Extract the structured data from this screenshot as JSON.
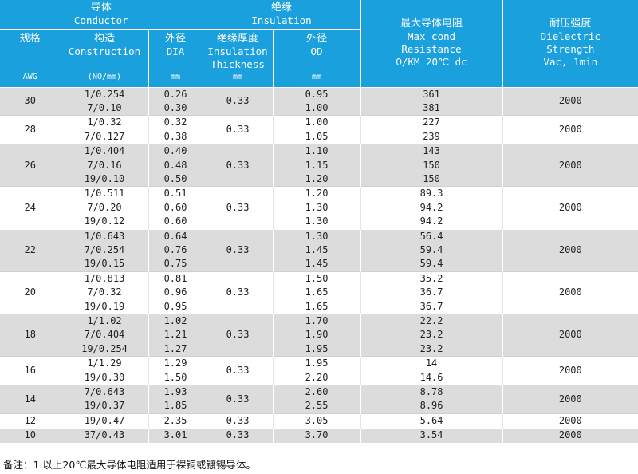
{
  "header": {
    "conductor_cn": "导体",
    "conductor_en": "Conductor",
    "insulation_cn": "绝缘",
    "insulation_en": "Insulation",
    "resistance_cn": "最大导体电阻",
    "resistance_en1": "Max cond",
    "resistance_en2": "Resistance",
    "resistance_unit": "Ω/KM 20℃ dc",
    "dielectric_cn": "耐压强度",
    "dielectric_en1": "Dielectric",
    "dielectric_en2": "Strength",
    "dielectric_unit": "Vac, 1min",
    "gauge_cn": "规格",
    "gauge_unit": "AWG",
    "construction_cn": "构造",
    "construction_en": "Construction",
    "construction_unit": "(NO/mm)",
    "dia_cn": "外径",
    "dia_en": "DIA",
    "dia_unit": "mm",
    "ins_thick_cn": "绝缘厚度",
    "ins_thick_en1": "Insulation",
    "ins_thick_en2": "Thickness",
    "ins_thick_unit": "mm",
    "od_cn": "外径",
    "od_en": "OD",
    "od_unit": "mm"
  },
  "groups": [
    {
      "awg": "30",
      "thickness": "0.33",
      "voltage": "2000",
      "rows": [
        {
          "construction": "1/0.254",
          "dia": "0.26",
          "od": "0.95",
          "resistance": "361"
        },
        {
          "construction": "7/0.10",
          "dia": "0.30",
          "od": "1.00",
          "resistance": "381"
        }
      ]
    },
    {
      "awg": "28",
      "thickness": "0.33",
      "voltage": "2000",
      "rows": [
        {
          "construction": "1/0.32",
          "dia": "0.32",
          "od": "1.00",
          "resistance": "227"
        },
        {
          "construction": "7/0.127",
          "dia": "0.38",
          "od": "1.05",
          "resistance": "239"
        }
      ]
    },
    {
      "awg": "26",
      "thickness": "0.33",
      "voltage": "2000",
      "rows": [
        {
          "construction": "1/0.404",
          "dia": "0.40",
          "od": "1.10",
          "resistance": "143"
        },
        {
          "construction": "7/0.16",
          "dia": "0.48",
          "od": "1.15",
          "resistance": "150"
        },
        {
          "construction": "19/0.10",
          "dia": "0.50",
          "od": "1.20",
          "resistance": "150"
        }
      ]
    },
    {
      "awg": "24",
      "thickness": "0.33",
      "voltage": "2000",
      "rows": [
        {
          "construction": "1/0.511",
          "dia": "0.51",
          "od": "1.20",
          "resistance": "89.3"
        },
        {
          "construction": "7/0.20",
          "dia": "0.60",
          "od": "1.30",
          "resistance": "94.2"
        },
        {
          "construction": "19/0.12",
          "dia": "0.60",
          "od": "1.30",
          "resistance": "94.2"
        }
      ]
    },
    {
      "awg": "22",
      "thickness": "0.33",
      "voltage": "2000",
      "rows": [
        {
          "construction": "1/0.643",
          "dia": "0.64",
          "od": "1.30",
          "resistance": "56.4"
        },
        {
          "construction": "7/0.254",
          "dia": "0.76",
          "od": "1.45",
          "resistance": "59.4"
        },
        {
          "construction": "19/0.15",
          "dia": "0.75",
          "od": "1.45",
          "resistance": "59.4"
        }
      ]
    },
    {
      "awg": "20",
      "thickness": "0.33",
      "voltage": "2000",
      "rows": [
        {
          "construction": "1/0.813",
          "dia": "0.81",
          "od": "1.50",
          "resistance": "35.2"
        },
        {
          "construction": "7/0.32",
          "dia": "0.96",
          "od": "1.65",
          "resistance": "36.7"
        },
        {
          "construction": "19/0.19",
          "dia": "0.95",
          "od": "1.65",
          "resistance": "36.7"
        }
      ]
    },
    {
      "awg": "18",
      "thickness": "0.33",
      "voltage": "2000",
      "rows": [
        {
          "construction": "1/1.02",
          "dia": "1.02",
          "od": "1.70",
          "resistance": "22.2"
        },
        {
          "construction": "7/0.404",
          "dia": "1.21",
          "od": "1.90",
          "resistance": "23.2"
        },
        {
          "construction": "19/0.254",
          "dia": "1.27",
          "od": "1.95",
          "resistance": "23.2"
        }
      ]
    },
    {
      "awg": "16",
      "thickness": "0.33",
      "voltage": "2000",
      "rows": [
        {
          "construction": "1/1.29",
          "dia": "1.29",
          "od": "1.95",
          "resistance": "14"
        },
        {
          "construction": "19/0.30",
          "dia": "1.50",
          "od": "2.20",
          "resistance": "14.6"
        }
      ]
    },
    {
      "awg": "14",
      "thickness": "0.33",
      "voltage": "2000",
      "rows": [
        {
          "construction": "7/0.643",
          "dia": "1.93",
          "od": "2.60",
          "resistance": "8.78"
        },
        {
          "construction": "19/0.37",
          "dia": "1.85",
          "od": "2.55",
          "resistance": "8.96"
        }
      ]
    },
    {
      "awg": "12",
      "thickness": "0.33",
      "voltage": "2000",
      "rows": [
        {
          "construction": "19/0.47",
          "dia": "2.35",
          "od": "3.05",
          "resistance": "5.64"
        }
      ]
    },
    {
      "awg": "10",
      "thickness": "0.33",
      "voltage": "2000",
      "rows": [
        {
          "construction": "37/0.43",
          "dia": "3.01",
          "od": "3.70",
          "resistance": "3.54"
        }
      ]
    }
  ],
  "footnote": "备注：1.以上20℃最大导体电阻适用于裸铜或镀锡导体。",
  "colors": {
    "header_bg": "#1aa0dc",
    "shade_bg": "#dcdcdc"
  }
}
